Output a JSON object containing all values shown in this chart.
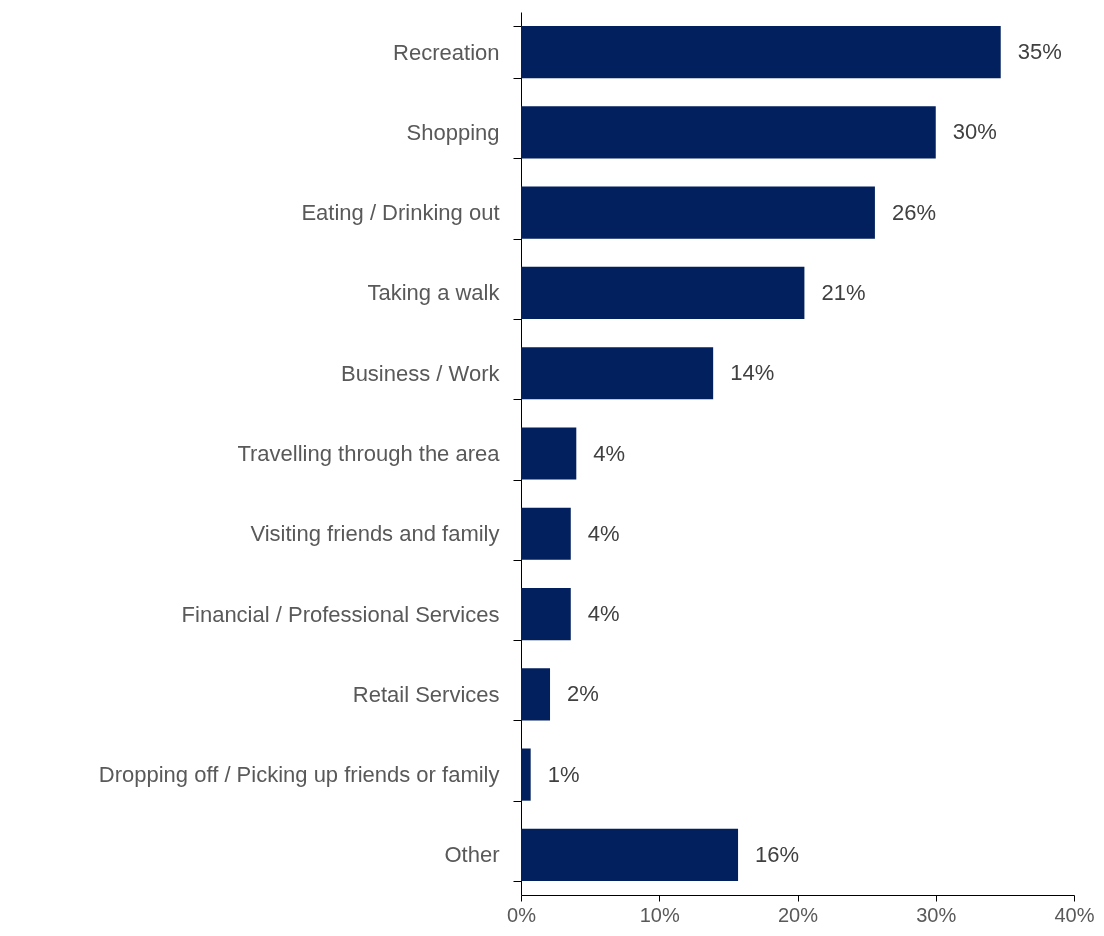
{
  "chart_data": {
    "type": "bar",
    "orientation": "horizontal",
    "categories": [
      "Recreation",
      "Shopping",
      "Eating / Drinking out",
      "Taking a walk",
      "Business / Work",
      "Travelling through the area",
      "Visiting friends and family",
      "Financial / Professional Services",
      "Retail Services",
      "Dropping off / Picking up friends or family",
      "Other"
    ],
    "values": [
      34.7,
      30.0,
      25.6,
      20.5,
      13.9,
      4.0,
      3.6,
      3.6,
      2.1,
      0.7,
      15.7
    ],
    "value_labels": [
      "35%",
      "30%",
      "26%",
      "21%",
      "14%",
      "4%",
      "4%",
      "4%",
      "2%",
      "1%",
      "16%"
    ],
    "color": "#02205e",
    "xlim": [
      0,
      40
    ],
    "xticks": [
      {
        "value": 0,
        "label": "0%"
      },
      {
        "value": 10,
        "label": "10%"
      },
      {
        "value": 20,
        "label": "20%"
      },
      {
        "value": 30,
        "label": "30%"
      },
      {
        "value": 40,
        "label": "40%"
      }
    ],
    "grid": false
  }
}
